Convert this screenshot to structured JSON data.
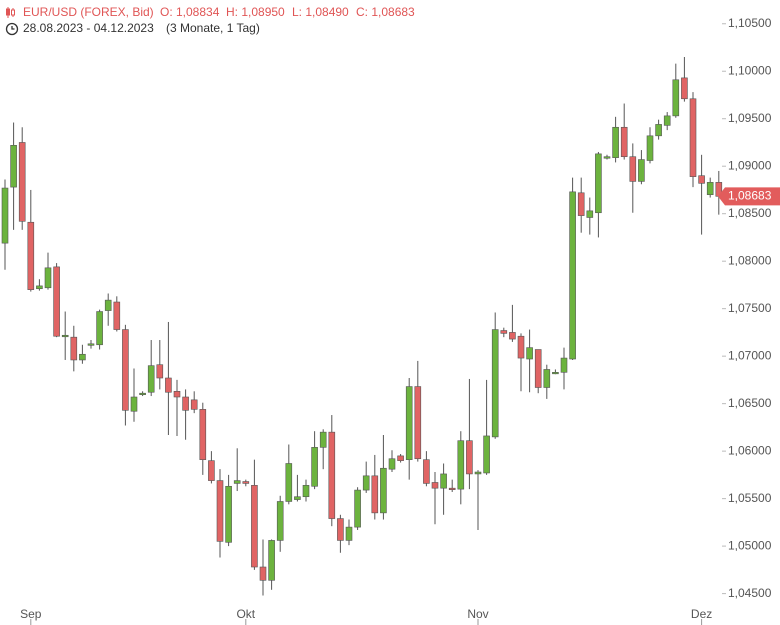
{
  "chart_data": {
    "type": "candlestick",
    "title": "EUR/USD (FOREX, Bid)",
    "ohlc_labels": [
      "O: 1,08834",
      "H: 1,08950",
      "L: 1,08490",
      "C: 1,08683"
    ],
    "date_range": "28.08.2023 - 04.12.2023",
    "period": "(3 Monate, 1 Tag)",
    "up_color": "#6cb33e",
    "down_color": "#e06464",
    "categories": [
      null,
      null,
      null,
      "Sep",
      null,
      null,
      null,
      null,
      null,
      null,
      null,
      null,
      null,
      null,
      null,
      null,
      null,
      null,
      null,
      null,
      null,
      null,
      null,
      null,
      null,
      null,
      null,
      null,
      "Okt",
      null,
      null,
      null,
      null,
      null,
      null,
      null,
      null,
      null,
      null,
      null,
      null,
      null,
      null,
      null,
      null,
      null,
      null,
      null,
      null,
      null,
      null,
      null,
      null,
      null,
      null,
      "Nov",
      null,
      null,
      null,
      null,
      null,
      null,
      null,
      null,
      null,
      null,
      null,
      null,
      null,
      null,
      null,
      null,
      null,
      null,
      null,
      null,
      null,
      null,
      null,
      null,
      null,
      "Dez",
      null,
      null
    ],
    "open": [
      1.0819,
      1.0878,
      1.0925,
      1.0841,
      1.0771,
      1.0772,
      1.0794,
      1.0721,
      1.072,
      1.0696,
      1.0712,
      1.0712,
      1.0748,
      1.0757,
      1.0728,
      1.0642,
      1.066,
      1.0662,
      1.0691,
      1.0677,
      1.0663,
      1.0657,
      1.0654,
      1.0644,
      1.059,
      1.0569,
      1.0504,
      1.0566,
      1.0568,
      1.0564,
      1.0478,
      1.0464,
      1.0506,
      1.0547,
      1.0549,
      1.0552,
      1.0563,
      1.0604,
      1.062,
      1.0529,
      1.0506,
      1.052,
      1.0559,
      1.0574,
      1.0535,
      1.0581,
      1.0595,
      1.0591,
      1.0668,
      1.0591,
      1.0567,
      1.0561,
      1.0561,
      1.056,
      1.0611,
      1.0576,
      1.0577,
      1.0615,
      1.0727,
      1.0725,
      1.0721,
      1.0697,
      1.0707,
      1.0667,
      1.0682,
      1.0683,
      1.0697,
      1.0872,
      1.0846,
      1.0851,
      1.0909,
      1.0909,
      1.0941,
      1.091,
      1.0884,
      1.0906,
      1.0932,
      1.0943,
      1.0953,
      1.0993,
      1.0971,
      1.089,
      1.087,
      1.0883
    ],
    "high": [
      1.0886,
      1.0946,
      1.0941,
      1.0875,
      1.0781,
      1.0809,
      1.0798,
      1.0747,
      1.0732,
      1.0712,
      1.0717,
      1.0749,
      1.0766,
      1.0763,
      1.0733,
      1.0687,
      1.0663,
      1.0717,
      1.0717,
      1.0736,
      1.0675,
      1.0665,
      1.0663,
      1.0651,
      1.06,
      1.0581,
      1.0575,
      1.0603,
      1.057,
      1.0591,
      1.0507,
      1.0507,
      1.0553,
      1.0607,
      1.0575,
      1.057,
      1.0621,
      1.0623,
      1.0638,
      1.0533,
      1.0528,
      1.0562,
      1.0589,
      1.0596,
      1.0617,
      1.0601,
      1.0597,
      1.0677,
      1.0695,
      1.06,
      1.0578,
      1.0587,
      1.057,
      1.0621,
      1.0676,
      1.058,
      1.0675,
      1.0746,
      1.073,
      1.0754,
      1.0724,
      1.0728,
      1.0707,
      1.0691,
      1.0686,
      1.0709,
      1.0888,
      1.0888,
      1.0867,
      1.0915,
      1.0912,
      1.0952,
      1.0966,
      1.0924,
      1.0917,
      1.0941,
      1.0949,
      1.0957,
      1.1008,
      1.1015,
      1.0978,
      1.0912,
      1.0888,
      1.0895
    ],
    "low": [
      1.0791,
      1.0833,
      1.0833,
      1.0768,
      1.0769,
      1.077,
      1.072,
      1.0696,
      1.0684,
      1.0692,
      1.0708,
      1.0707,
      1.0732,
      1.0726,
      1.0627,
      1.0631,
      1.0658,
      1.0658,
      1.0665,
      1.0617,
      1.0616,
      1.0612,
      1.064,
      1.0575,
      1.0566,
      1.0488,
      1.05,
      1.0558,
      1.0563,
      1.0475,
      1.0448,
      1.0454,
      1.0494,
      1.0544,
      1.0547,
      1.0547,
      1.056,
      1.0581,
      1.0521,
      1.0493,
      1.0501,
      1.0517,
      1.0556,
      1.0528,
      1.0528,
      1.0578,
      1.0588,
      1.057,
      1.0589,
      1.0563,
      1.0523,
      1.0533,
      1.0557,
      1.0544,
      1.056,
      1.0517,
      1.0575,
      1.0613,
      1.072,
      1.0715,
      1.0663,
      1.0662,
      1.0661,
      1.0655,
      1.0681,
      1.0665,
      1.0696,
      1.083,
      1.0828,
      1.0825,
      1.0907,
      1.0904,
      1.0907,
      1.0851,
      1.0881,
      1.0903,
      1.0928,
      1.0938,
      1.0951,
      1.0968,
      1.0878,
      1.0828,
      1.0867,
      1.0849
    ],
    "close": [
      1.0877,
      1.0922,
      1.0842,
      1.077,
      1.0774,
      1.0793,
      1.0721,
      1.0722,
      1.0696,
      1.0702,
      1.0713,
      1.0747,
      1.0759,
      1.0728,
      1.0643,
      1.0657,
      1.0661,
      1.069,
      1.0677,
      1.0662,
      1.0657,
      1.0643,
      1.0644,
      1.0591,
      1.0569,
      1.0505,
      1.0563,
      1.0569,
      1.0566,
      1.0478,
      1.0464,
      1.0506,
      1.0547,
      1.0587,
      1.0552,
      1.0564,
      1.0604,
      1.062,
      1.0529,
      1.0506,
      1.052,
      1.0559,
      1.0574,
      1.0535,
      1.0582,
      1.0592,
      1.059,
      1.0668,
      1.0592,
      1.0566,
      1.0561,
      1.0576,
      1.056,
      1.0611,
      1.0576,
      1.0578,
      1.0616,
      1.0728,
      1.0724,
      1.0718,
      1.0698,
      1.0709,
      1.0667,
      1.0686,
      1.0683,
      1.0698,
      1.0873,
      1.0848,
      1.0853,
      1.0913,
      1.091,
      1.0941,
      1.091,
      1.0884,
      1.0907,
      1.0932,
      1.0944,
      1.0953,
      1.0991,
      1.0971,
      1.0889,
      1.0882,
      1.0883,
      1.08683
    ],
    "last_price": {
      "value": 1.08683,
      "label": "1,08683"
    },
    "ylim": [
      1.0438,
      1.1075
    ],
    "yticks": [
      {
        "value": 1.045,
        "label": "1,04500"
      },
      {
        "value": 1.05,
        "label": "1,05000"
      },
      {
        "value": 1.055,
        "label": "1,05500"
      },
      {
        "value": 1.06,
        "label": "1,06000"
      },
      {
        "value": 1.065,
        "label": "1,06500"
      },
      {
        "value": 1.07,
        "label": "1,07000"
      },
      {
        "value": 1.075,
        "label": "1,07500"
      },
      {
        "value": 1.08,
        "label": "1,08000"
      },
      {
        "value": 1.085,
        "label": "1,08500"
      },
      {
        "value": 1.09,
        "label": "1,09000"
      },
      {
        "value": 1.095,
        "label": "1,09500"
      },
      {
        "value": 1.1,
        "label": "1,10000"
      },
      {
        "value": 1.105,
        "label": "1,10500"
      }
    ]
  }
}
